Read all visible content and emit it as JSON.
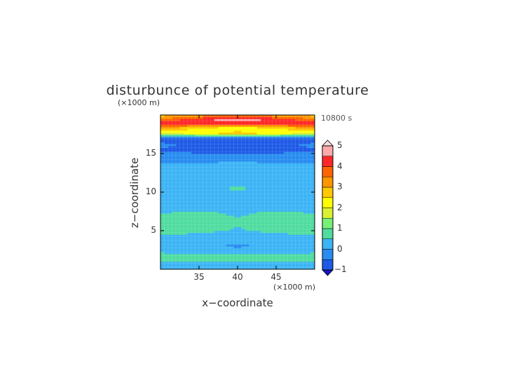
{
  "chart_data": {
    "type": "heatmap",
    "title": "disturbunce of potential temperature",
    "time_label": "10800 s",
    "xlabel": "x−coordinate",
    "ylabel": "z−coordinate",
    "x_unit": "(×1000 m)",
    "y_unit": "(×1000 m)",
    "xlim": [
      30,
      50
    ],
    "ylim": [
      0,
      20
    ],
    "xticks": [
      "35",
      "40",
      "45"
    ],
    "yticks": [
      "5",
      "10",
      "15"
    ],
    "colorbar": {
      "labels": [
        "5",
        "4",
        "3",
        "2",
        "1",
        "0",
        "−1"
      ],
      "levels": [
        -1,
        -0.5,
        0,
        0.5,
        1,
        1.5,
        2,
        2.5,
        3,
        3.5,
        4,
        4.5,
        5
      ],
      "colors": [
        "#1414c8",
        "#1e5ae6",
        "#288cf0",
        "#3cb4f5",
        "#50dca0",
        "#78f078",
        "#dcf032",
        "#ffff00",
        "#ffc800",
        "#ff9600",
        "#ff6400",
        "#ff2828",
        "#ffaaaa",
        "#ffdcdc"
      ],
      "extend": "both"
    },
    "field_rows": [
      {
        "z": 0.0,
        "v": [
          0.05,
          0.05,
          0.05,
          0.05,
          0.05
        ]
      },
      {
        "z": 0.5,
        "v": [
          0.2,
          0.2,
          0.2,
          0.2,
          0.2
        ]
      },
      {
        "z": 1.0,
        "v": [
          0.5,
          0.5,
          0.45,
          0.5,
          0.5
        ]
      },
      {
        "z": 1.5,
        "v": [
          0.75,
          0.7,
          0.65,
          0.7,
          0.75
        ]
      },
      {
        "z": 2.0,
        "v": [
          0.55,
          0.5,
          0.5,
          0.5,
          0.55
        ]
      },
      {
        "z": 3.0,
        "v": [
          0.2,
          0.15,
          -0.1,
          0.15,
          0.2
        ]
      },
      {
        "z": 4.0,
        "v": [
          0.3,
          0.2,
          0.15,
          0.2,
          0.3
        ]
      },
      {
        "z": 5.0,
        "v": [
          0.85,
          0.6,
          0.45,
          0.6,
          0.85
        ]
      },
      {
        "z": 6.0,
        "v": [
          0.8,
          0.75,
          0.55,
          0.75,
          0.8
        ]
      },
      {
        "z": 7.0,
        "v": [
          0.55,
          0.75,
          0.45,
          0.75,
          0.55
        ]
      },
      {
        "z": 8.0,
        "v": [
          0.3,
          0.35,
          0.3,
          0.35,
          0.3
        ]
      },
      {
        "z": 9.5,
        "v": [
          0.35,
          0.35,
          0.3,
          0.35,
          0.35
        ]
      },
      {
        "z": 10.5,
        "v": [
          0.35,
          0.4,
          0.55,
          0.4,
          0.35
        ]
      },
      {
        "z": 11.5,
        "v": [
          0.35,
          0.35,
          0.35,
          0.35,
          0.35
        ]
      },
      {
        "z": 12.5,
        "v": [
          0.25,
          0.3,
          0.3,
          0.3,
          0.25
        ]
      },
      {
        "z": 13.5,
        "v": [
          0.05,
          0.1,
          0.2,
          0.1,
          0.05
        ]
      },
      {
        "z": 14.5,
        "v": [
          -0.2,
          -0.3,
          -0.2,
          -0.3,
          -0.2
        ]
      },
      {
        "z": 15.5,
        "v": [
          -0.55,
          -0.65,
          -0.7,
          -0.65,
          -0.55
        ]
      },
      {
        "z": 16.2,
        "v": [
          -0.4,
          -0.6,
          -0.65,
          -0.6,
          -0.4
        ]
      },
      {
        "z": 17.0,
        "v": [
          -0.8,
          -0.95,
          -1.0,
          -0.95,
          -0.8
        ]
      },
      {
        "z": 17.6,
        "v": [
          1.6,
          2.2,
          2.8,
          2.2,
          1.6
        ]
      },
      {
        "z": 18.3,
        "v": [
          3.2,
          2.4,
          2.1,
          2.4,
          3.2
        ]
      },
      {
        "z": 18.9,
        "v": [
          4.4,
          4.1,
          4.3,
          4.1,
          4.4
        ]
      },
      {
        "z": 19.4,
        "v": [
          3.6,
          4.4,
          4.7,
          4.4,
          3.6
        ]
      },
      {
        "z": 20.0,
        "v": [
          2.8,
          3.2,
          3.6,
          3.2,
          2.8
        ]
      }
    ],
    "field_x": [
      30,
      35,
      40,
      45,
      50
    ]
  }
}
